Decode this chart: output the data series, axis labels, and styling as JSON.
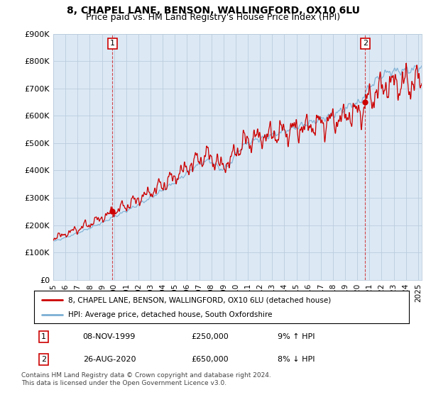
{
  "title": "8, CHAPEL LANE, BENSON, WALLINGFORD, OX10 6LU",
  "subtitle": "Price paid vs. HM Land Registry's House Price Index (HPI)",
  "ylim": [
    0,
    900000
  ],
  "ytick_labels": [
    "£0",
    "£100K",
    "£200K",
    "£300K",
    "£400K",
    "£500K",
    "£600K",
    "£700K",
    "£800K",
    "£900K"
  ],
  "ytick_values": [
    0,
    100000,
    200000,
    300000,
    400000,
    500000,
    600000,
    700000,
    800000,
    900000
  ],
  "hpi_color": "#7bafd4",
  "price_color": "#cc0000",
  "plot_bg_color": "#dce9f5",
  "marker1_date_num": 1999.86,
  "marker1_price": 250000,
  "marker1_label": "1",
  "marker1_date_str": "08-NOV-1999",
  "marker1_price_str": "£250,000",
  "marker1_hpi_str": "9% ↑ HPI",
  "marker2_date_num": 2020.65,
  "marker2_price": 650000,
  "marker2_label": "2",
  "marker2_date_str": "26-AUG-2020",
  "marker2_price_str": "£650,000",
  "marker2_hpi_str": "8% ↓ HPI",
  "legend_line1": "8, CHAPEL LANE, BENSON, WALLINGFORD, OX10 6LU (detached house)",
  "legend_line2": "HPI: Average price, detached house, South Oxfordshire",
  "footnote": "Contains HM Land Registry data © Crown copyright and database right 2024.\nThis data is licensed under the Open Government Licence v3.0.",
  "background_color": "#ffffff",
  "grid_color": "#bbccdd",
  "title_fontsize": 10,
  "subtitle_fontsize": 9,
  "tick_fontsize": 8,
  "xstart": 1995.0,
  "xend": 2025.3
}
